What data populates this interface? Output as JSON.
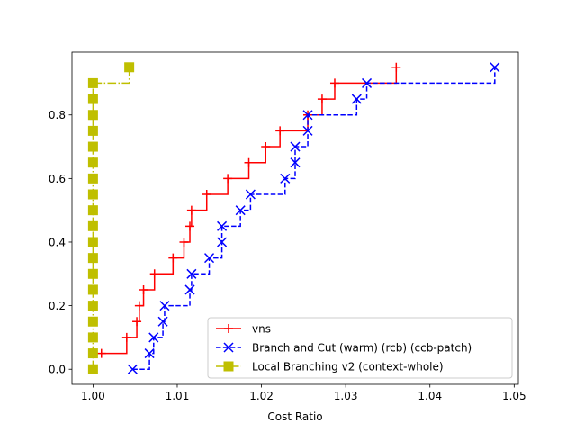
{
  "chart_data": {
    "type": "line",
    "title": "",
    "xlabel": "Cost Ratio",
    "ylabel": "",
    "xlim": [
      0.9975,
      1.0505
    ],
    "ylim": [
      -0.0475,
      0.9975
    ],
    "x_ticks": [
      1.0,
      1.01,
      1.02,
      1.03,
      1.04,
      1.05
    ],
    "x_tick_labels": [
      "1.00",
      "1.01",
      "1.02",
      "1.03",
      "1.04",
      "1.05"
    ],
    "y_ticks": [
      0.0,
      0.2,
      0.4,
      0.6,
      0.8
    ],
    "y_tick_labels": [
      "0.0",
      "0.2",
      "0.4",
      "0.6",
      "0.8"
    ],
    "grid": false,
    "legend_position": "lower-right",
    "series": [
      {
        "name": "vns",
        "color": "#ff0000",
        "linestyle": "solid",
        "marker": "plus",
        "x": [
          1.001,
          1.004,
          1.0052,
          1.0055,
          1.006,
          1.0073,
          1.0095,
          1.0108,
          1.0115,
          1.0117,
          1.0135,
          1.016,
          1.0185,
          1.0205,
          1.0222,
          1.0255,
          1.0272,
          1.0287,
          1.036
        ],
        "y": [
          0.05,
          0.1,
          0.15,
          0.2,
          0.25,
          0.3,
          0.35,
          0.4,
          0.45,
          0.5,
          0.55,
          0.6,
          0.65,
          0.7,
          0.75,
          0.8,
          0.85,
          0.9,
          0.95
        ]
      },
      {
        "name": "Branch and Cut (warm) (rcb) (ccb-patch)",
        "color": "#0000ff",
        "linestyle": "dashed",
        "marker": "x",
        "x": [
          1.0047,
          1.0067,
          1.0072,
          1.0083,
          1.0085,
          1.0115,
          1.0117,
          1.0138,
          1.0153,
          1.0153,
          1.0175,
          1.0187,
          1.0228,
          1.024,
          1.024,
          1.0255,
          1.0255,
          1.0313,
          1.0325,
          1.0477
        ],
        "y": [
          0.0,
          0.05,
          0.1,
          0.15,
          0.2,
          0.25,
          0.3,
          0.35,
          0.4,
          0.45,
          0.5,
          0.55,
          0.6,
          0.65,
          0.7,
          0.75,
          0.8,
          0.85,
          0.9,
          0.95
        ]
      },
      {
        "name": "Local Branching v2 (context-whole)",
        "color": "#bfbf00",
        "linestyle": "dashdot",
        "marker": "square",
        "x": [
          1.0,
          1.0,
          1.0,
          1.0,
          1.0,
          1.0,
          1.0,
          1.0,
          1.0,
          1.0,
          1.0,
          1.0,
          1.0,
          1.0,
          1.0,
          1.0,
          1.0,
          1.0,
          1.0,
          1.0043
        ],
        "y": [
          0.0,
          0.05,
          0.1,
          0.15,
          0.2,
          0.25,
          0.3,
          0.35,
          0.4,
          0.45,
          0.5,
          0.55,
          0.6,
          0.65,
          0.7,
          0.75,
          0.8,
          0.85,
          0.9,
          0.95
        ]
      }
    ]
  }
}
